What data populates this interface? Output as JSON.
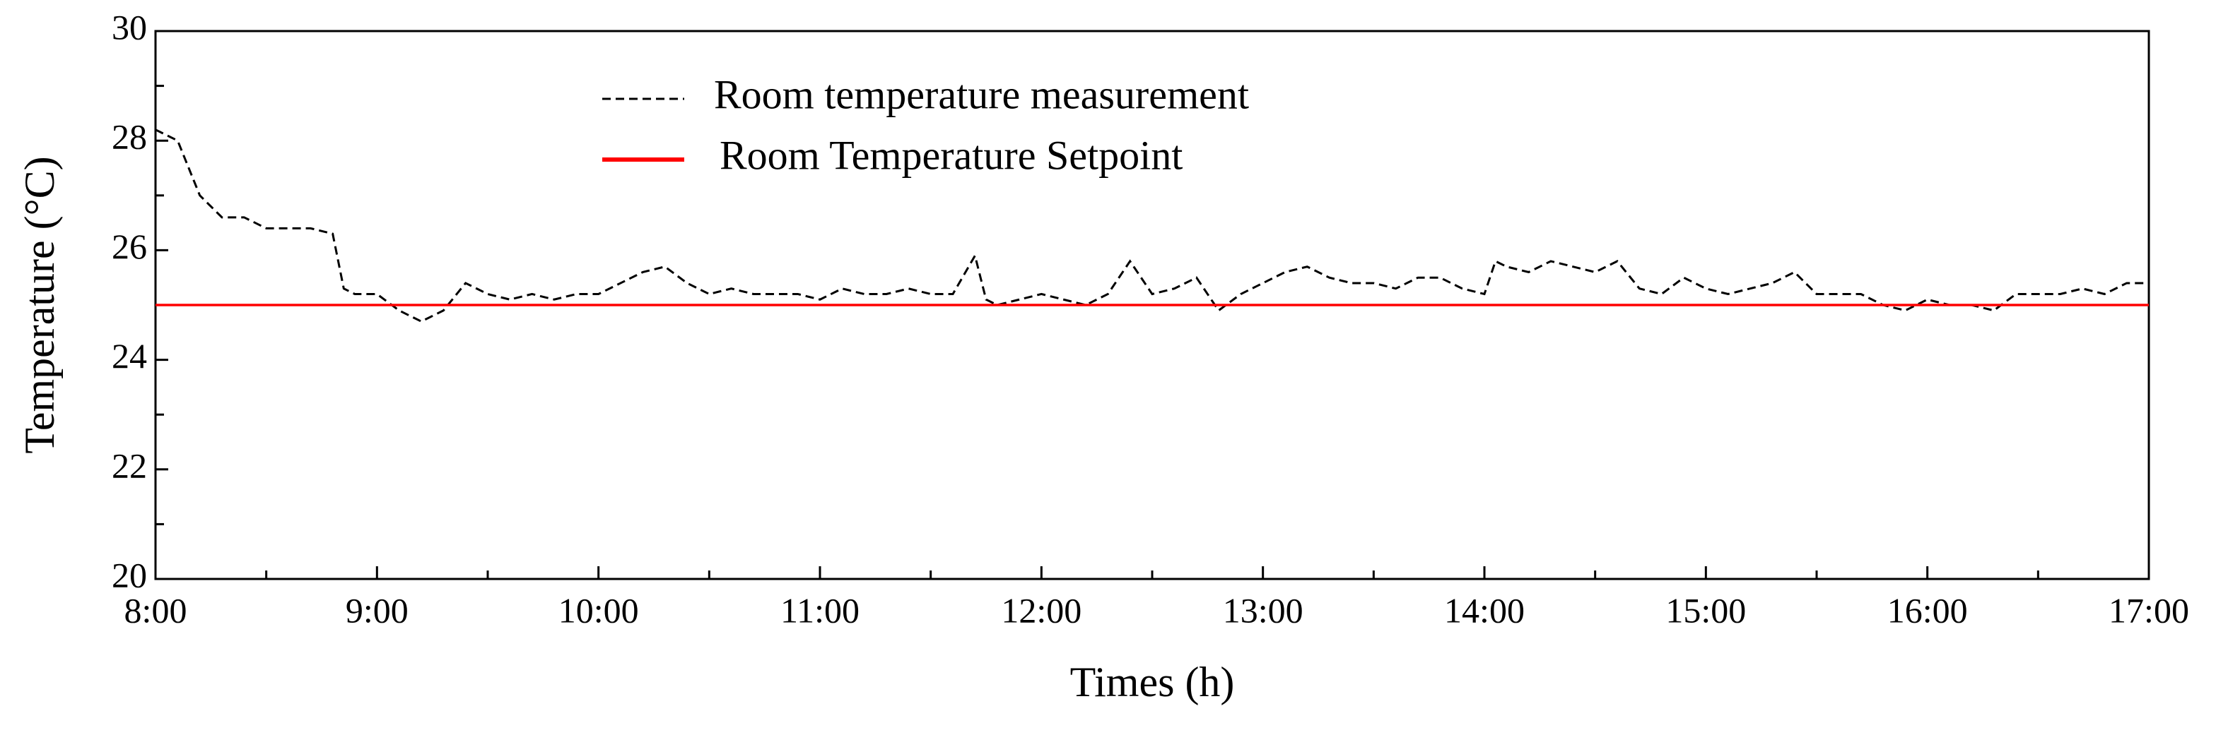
{
  "chart_data": {
    "type": "line",
    "xlabel": "Times (h)",
    "ylabel": "Temperature (°C)",
    "xlim": [
      8,
      17
    ],
    "xticks": [
      {
        "value": 8,
        "label": "8:00"
      },
      {
        "value": 9,
        "label": "9:00"
      },
      {
        "value": 10,
        "label": "10:00"
      },
      {
        "value": 11,
        "label": "11:00"
      },
      {
        "value": 12,
        "label": "12:00"
      },
      {
        "value": 13,
        "label": "13:00"
      },
      {
        "value": 14,
        "label": "14:00"
      },
      {
        "value": 15,
        "label": "15:00"
      },
      {
        "value": 16,
        "label": "16:00"
      },
      {
        "value": 17,
        "label": "17:00"
      }
    ],
    "xminorticks": [
      8.5,
      9.5,
      10.5,
      11.5,
      12.5,
      13.5,
      14.5,
      15.5,
      16.5
    ],
    "ylim": [
      20,
      30
    ],
    "yticks": [
      20,
      22,
      24,
      26,
      28,
      30
    ],
    "yminorticks": [
      21,
      23,
      25,
      27,
      29
    ],
    "grid": false,
    "series": [
      {
        "name": "Room temperature measurement",
        "color": "#000000",
        "dashed": true,
        "x": [
          8.0,
          8.1,
          8.2,
          8.3,
          8.4,
          8.5,
          8.6,
          8.7,
          8.8,
          8.85,
          8.9,
          9.0,
          9.1,
          9.2,
          9.3,
          9.4,
          9.5,
          9.6,
          9.7,
          9.8,
          9.9,
          10.0,
          10.1,
          10.2,
          10.3,
          10.4,
          10.5,
          10.6,
          10.7,
          10.8,
          10.9,
          11.0,
          11.1,
          11.2,
          11.3,
          11.4,
          11.5,
          11.6,
          11.7,
          11.75,
          11.8,
          11.9,
          12.0,
          12.1,
          12.2,
          12.3,
          12.4,
          12.5,
          12.6,
          12.7,
          12.8,
          12.9,
          13.0,
          13.1,
          13.2,
          13.3,
          13.4,
          13.5,
          13.6,
          13.7,
          13.8,
          13.9,
          14.0,
          14.05,
          14.1,
          14.2,
          14.3,
          14.4,
          14.5,
          14.6,
          14.7,
          14.8,
          14.9,
          15.0,
          15.1,
          15.2,
          15.3,
          15.4,
          15.5,
          15.6,
          15.7,
          15.8,
          15.9,
          16.0,
          16.1,
          16.2,
          16.3,
          16.4,
          16.5,
          16.6,
          16.7,
          16.8,
          16.9,
          17.0
        ],
        "values": [
          28.2,
          28.0,
          27.0,
          26.6,
          26.6,
          26.4,
          26.4,
          26.4,
          26.3,
          25.3,
          25.2,
          25.2,
          24.9,
          24.7,
          24.9,
          25.4,
          25.2,
          25.1,
          25.2,
          25.1,
          25.2,
          25.2,
          25.4,
          25.6,
          25.7,
          25.4,
          25.2,
          25.3,
          25.2,
          25.2,
          25.2,
          25.1,
          25.3,
          25.2,
          25.2,
          25.3,
          25.2,
          25.2,
          25.9,
          25.1,
          25.0,
          25.1,
          25.2,
          25.1,
          25.0,
          25.2,
          25.8,
          25.2,
          25.3,
          25.5,
          24.9,
          25.2,
          25.4,
          25.6,
          25.7,
          25.5,
          25.4,
          25.4,
          25.3,
          25.5,
          25.5,
          25.3,
          25.2,
          25.8,
          25.7,
          25.6,
          25.8,
          25.7,
          25.6,
          25.8,
          25.3,
          25.2,
          25.5,
          25.3,
          25.2,
          25.3,
          25.4,
          25.6,
          25.2,
          25.2,
          25.2,
          25.0,
          24.9,
          25.1,
          25.0,
          25.0,
          24.9,
          25.2,
          25.2,
          25.2,
          25.3,
          25.2,
          25.4,
          25.4
        ]
      },
      {
        "name": "Room Temperature Setpoint",
        "color": "#ff0000",
        "dashed": false,
        "x": [
          8,
          17
        ],
        "values": [
          25,
          25
        ]
      }
    ]
  }
}
